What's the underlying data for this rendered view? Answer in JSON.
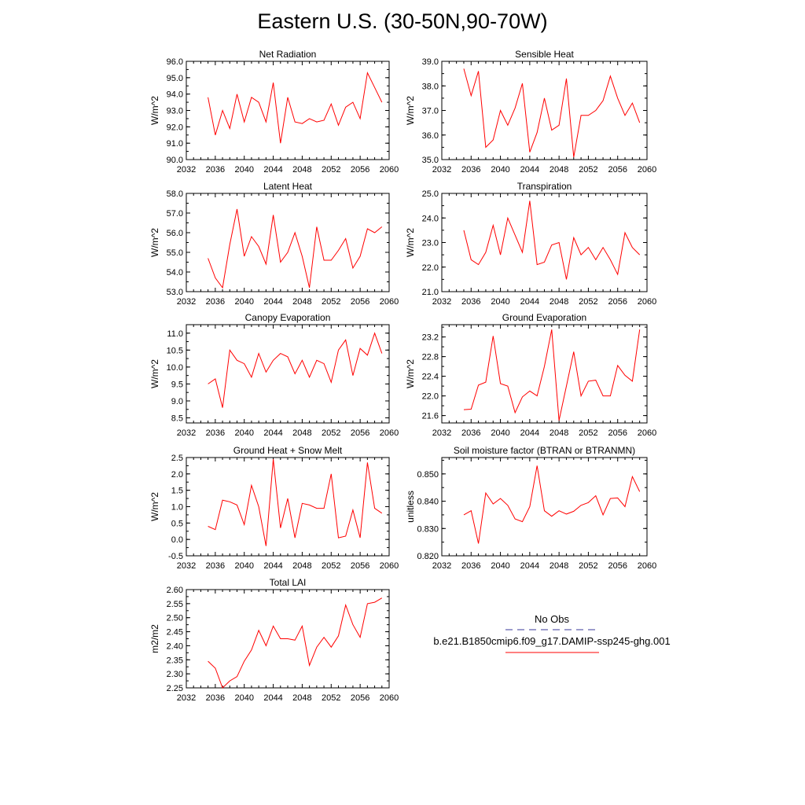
{
  "title": "Eastern U.S. (30-50N,90-70W)",
  "legend": {
    "entries": [
      {
        "label": "No Obs",
        "color": "#3a3a9a",
        "style": "dashed"
      },
      {
        "label": "b.e21.B1850cmip6.f09_g17.DAMIP-ssp245-ghg.001",
        "color": "#ff0000",
        "style": "solid"
      }
    ]
  },
  "chart_data": [
    {
      "type": "line",
      "title": "Net Radiation",
      "ylabel": "W/m^2",
      "xlim": [
        2032,
        2060
      ],
      "ylim": [
        90,
        96
      ],
      "xticks": [
        2032,
        2036,
        2040,
        2044,
        2048,
        2052,
        2056,
        2060
      ],
      "yticks": [
        "90.0",
        "91.0",
        "92.0",
        "93.0",
        "94.0",
        "95.0",
        "96.0"
      ],
      "series": [
        {
          "color": "#ff0000",
          "x": [
            2035,
            2036,
            2037,
            2038,
            2039,
            2040,
            2041,
            2042,
            2043,
            2044,
            2045,
            2046,
            2047,
            2048,
            2049,
            2050,
            2051,
            2052,
            2053,
            2054,
            2055,
            2056,
            2057,
            2058,
            2059
          ],
          "y": [
            93.8,
            91.5,
            93.0,
            91.9,
            94.0,
            92.3,
            93.8,
            93.5,
            92.3,
            94.7,
            91.0,
            93.8,
            92.3,
            92.2,
            92.5,
            92.3,
            92.4,
            93.4,
            92.1,
            93.2,
            93.5,
            92.5,
            95.3,
            94.4,
            93.5
          ]
        }
      ]
    },
    {
      "type": "line",
      "title": "Sensible Heat",
      "ylabel": "W/m^2",
      "xlim": [
        2032,
        2060
      ],
      "ylim": [
        35,
        39
      ],
      "xticks": [
        2032,
        2036,
        2040,
        2044,
        2048,
        2052,
        2056,
        2060
      ],
      "yticks": [
        "35.0",
        "36.0",
        "37.0",
        "38.0",
        "39.0"
      ],
      "series": [
        {
          "color": "#ff0000",
          "x": [
            2035,
            2036,
            2037,
            2038,
            2039,
            2040,
            2041,
            2042,
            2043,
            2044,
            2045,
            2046,
            2047,
            2048,
            2049,
            2050,
            2051,
            2052,
            2053,
            2054,
            2055,
            2056,
            2057,
            2058,
            2059
          ],
          "y": [
            38.7,
            37.6,
            38.6,
            35.5,
            35.8,
            37.0,
            36.4,
            37.1,
            38.1,
            35.3,
            36.1,
            37.5,
            36.2,
            36.4,
            38.3,
            35.1,
            36.8,
            36.8,
            37.0,
            37.4,
            38.4,
            37.5,
            36.8,
            37.3,
            36.5
          ]
        }
      ]
    },
    {
      "type": "line",
      "title": "Latent Heat",
      "ylabel": "W/m^2",
      "xlim": [
        2032,
        2060
      ],
      "ylim": [
        53,
        58
      ],
      "xticks": [
        2032,
        2036,
        2040,
        2044,
        2048,
        2052,
        2056,
        2060
      ],
      "yticks": [
        "53.0",
        "54.0",
        "55.0",
        "56.0",
        "57.0",
        "58.0"
      ],
      "series": [
        {
          "color": "#ff0000",
          "x": [
            2035,
            2036,
            2037,
            2038,
            2039,
            2040,
            2041,
            2042,
            2043,
            2044,
            2045,
            2046,
            2047,
            2048,
            2049,
            2050,
            2051,
            2052,
            2053,
            2054,
            2055,
            2056,
            2057,
            2058,
            2059
          ],
          "y": [
            54.7,
            53.7,
            53.2,
            55.4,
            57.2,
            54.8,
            55.8,
            55.3,
            54.4,
            56.9,
            54.5,
            55.0,
            56.0,
            54.8,
            53.2,
            56.3,
            54.6,
            54.6,
            55.1,
            55.7,
            54.2,
            54.8,
            56.2,
            56.0,
            56.3
          ]
        }
      ]
    },
    {
      "type": "line",
      "title": "Transpiration",
      "ylabel": "W/m^2",
      "xlim": [
        2032,
        2060
      ],
      "ylim": [
        21,
        25
      ],
      "xticks": [
        2032,
        2036,
        2040,
        2044,
        2048,
        2052,
        2056,
        2060
      ],
      "yticks": [
        "21.0",
        "22.0",
        "23.0",
        "24.0",
        "25.0"
      ],
      "series": [
        {
          "color": "#ff0000",
          "x": [
            2035,
            2036,
            2037,
            2038,
            2039,
            2040,
            2041,
            2042,
            2043,
            2044,
            2045,
            2046,
            2047,
            2048,
            2049,
            2050,
            2051,
            2052,
            2053,
            2054,
            2055,
            2056,
            2057,
            2058,
            2059
          ],
          "y": [
            23.5,
            22.3,
            22.1,
            22.6,
            23.7,
            22.5,
            24.0,
            23.3,
            22.6,
            24.7,
            22.1,
            22.2,
            22.9,
            23.0,
            21.5,
            23.2,
            22.5,
            22.8,
            22.3,
            22.8,
            22.3,
            21.7,
            23.4,
            22.8,
            22.5
          ]
        }
      ]
    },
    {
      "type": "line",
      "title": "Canopy Evaporation",
      "ylabel": "W/m^2",
      "xlim": [
        2032,
        2060
      ],
      "ylim": [
        8.35,
        11.25
      ],
      "xticks": [
        2032,
        2036,
        2040,
        2044,
        2048,
        2052,
        2056,
        2060
      ],
      "yticks": [
        "8.5",
        "9.0",
        "9.5",
        "10.0",
        "10.5",
        "11.0"
      ],
      "series": [
        {
          "color": "#ff0000",
          "x": [
            2035,
            2036,
            2037,
            2038,
            2039,
            2040,
            2041,
            2042,
            2043,
            2044,
            2045,
            2046,
            2047,
            2048,
            2049,
            2050,
            2051,
            2052,
            2053,
            2054,
            2055,
            2056,
            2057,
            2058,
            2059
          ],
          "y": [
            9.5,
            9.65,
            8.8,
            10.5,
            10.2,
            10.1,
            9.7,
            10.4,
            9.85,
            10.2,
            10.4,
            10.3,
            9.8,
            10.2,
            9.7,
            10.2,
            10.1,
            9.55,
            10.5,
            10.8,
            9.75,
            10.55,
            10.35,
            11.0,
            10.4
          ]
        }
      ]
    },
    {
      "type": "line",
      "title": "Ground Evaporation",
      "ylabel": "W/m^2",
      "xlim": [
        2032,
        2060
      ],
      "ylim": [
        21.45,
        23.45
      ],
      "xticks": [
        2032,
        2036,
        2040,
        2044,
        2048,
        2052,
        2056,
        2060
      ],
      "yticks": [
        "21.6",
        "22.0",
        "22.4",
        "22.8",
        "23.2"
      ],
      "series": [
        {
          "color": "#ff0000",
          "x": [
            2035,
            2036,
            2037,
            2038,
            2039,
            2040,
            2041,
            2042,
            2043,
            2044,
            2045,
            2046,
            2047,
            2048,
            2049,
            2050,
            2051,
            2052,
            2053,
            2054,
            2055,
            2056,
            2057,
            2058,
            2059
          ],
          "y": [
            21.72,
            21.73,
            22.22,
            22.28,
            23.22,
            22.25,
            22.2,
            21.66,
            21.98,
            22.1,
            22.0,
            22.6,
            23.35,
            21.5,
            22.2,
            22.9,
            22.0,
            22.3,
            22.32,
            22.0,
            22.0,
            22.62,
            22.42,
            22.3,
            23.35
          ]
        }
      ]
    },
    {
      "type": "line",
      "title": "Ground Heat + Snow Melt",
      "ylabel": "W/m^2",
      "xlim": [
        2032,
        2060
      ],
      "ylim": [
        -0.5,
        2.5
      ],
      "xticks": [
        2032,
        2036,
        2040,
        2044,
        2048,
        2052,
        2056,
        2060
      ],
      "yticks": [
        "-0.5",
        "0.0",
        "0.5",
        "1.0",
        "1.5",
        "2.0",
        "2.5"
      ],
      "series": [
        {
          "color": "#ff0000",
          "x": [
            2035,
            2036,
            2037,
            2038,
            2039,
            2040,
            2041,
            2042,
            2043,
            2044,
            2045,
            2046,
            2047,
            2048,
            2049,
            2050,
            2051,
            2052,
            2053,
            2054,
            2055,
            2056,
            2057,
            2058,
            2059
          ],
          "y": [
            0.4,
            0.3,
            1.2,
            1.15,
            1.05,
            0.45,
            1.65,
            1.0,
            -0.2,
            2.45,
            0.35,
            1.25,
            0.05,
            1.1,
            1.05,
            0.95,
            0.95,
            2.0,
            0.05,
            0.1,
            0.9,
            0.05,
            2.35,
            0.95,
            0.8
          ]
        }
      ]
    },
    {
      "type": "line",
      "title": "Soil moisture factor (BTRAN or BTRANMN)",
      "ylabel": "unitless",
      "xlim": [
        2032,
        2060
      ],
      "ylim": [
        0.82,
        0.856
      ],
      "xticks": [
        2032,
        2036,
        2040,
        2044,
        2048,
        2052,
        2056,
        2060
      ],
      "yticks": [
        "0.820",
        "0.830",
        "0.840",
        "0.850"
      ],
      "series": [
        {
          "color": "#ff0000",
          "x": [
            2035,
            2036,
            2037,
            2038,
            2039,
            2040,
            2041,
            2042,
            2043,
            2044,
            2045,
            2046,
            2047,
            2048,
            2049,
            2050,
            2051,
            2052,
            2053,
            2054,
            2055,
            2056,
            2057,
            2058,
            2059
          ],
          "y": [
            0.835,
            0.8365,
            0.8245,
            0.843,
            0.839,
            0.841,
            0.8385,
            0.8335,
            0.8325,
            0.838,
            0.853,
            0.8365,
            0.8345,
            0.8365,
            0.8353,
            0.8363,
            0.8385,
            0.8395,
            0.842,
            0.835,
            0.841,
            0.8412,
            0.838,
            0.849,
            0.8435
          ]
        }
      ]
    },
    {
      "type": "line",
      "title": "Total LAI",
      "ylabel": "m2/m2",
      "xlim": [
        2032,
        2060
      ],
      "ylim": [
        2.25,
        2.6
      ],
      "xticks": [
        2032,
        2036,
        2040,
        2044,
        2048,
        2052,
        2056,
        2060
      ],
      "yticks": [
        "2.25",
        "2.30",
        "2.35",
        "2.40",
        "2.45",
        "2.50",
        "2.55",
        "2.60"
      ],
      "series": [
        {
          "color": "#ff0000",
          "x": [
            2035,
            2036,
            2037,
            2038,
            2039,
            2040,
            2041,
            2042,
            2043,
            2044,
            2045,
            2046,
            2047,
            2048,
            2049,
            2050,
            2051,
            2052,
            2053,
            2054,
            2055,
            2056,
            2057,
            2058,
            2059
          ],
          "y": [
            2.345,
            2.32,
            2.25,
            2.275,
            2.29,
            2.345,
            2.385,
            2.455,
            2.4,
            2.47,
            2.425,
            2.425,
            2.42,
            2.47,
            2.33,
            2.395,
            2.43,
            2.395,
            2.435,
            2.545,
            2.475,
            2.43,
            2.55,
            2.555,
            2.57
          ]
        }
      ]
    }
  ]
}
